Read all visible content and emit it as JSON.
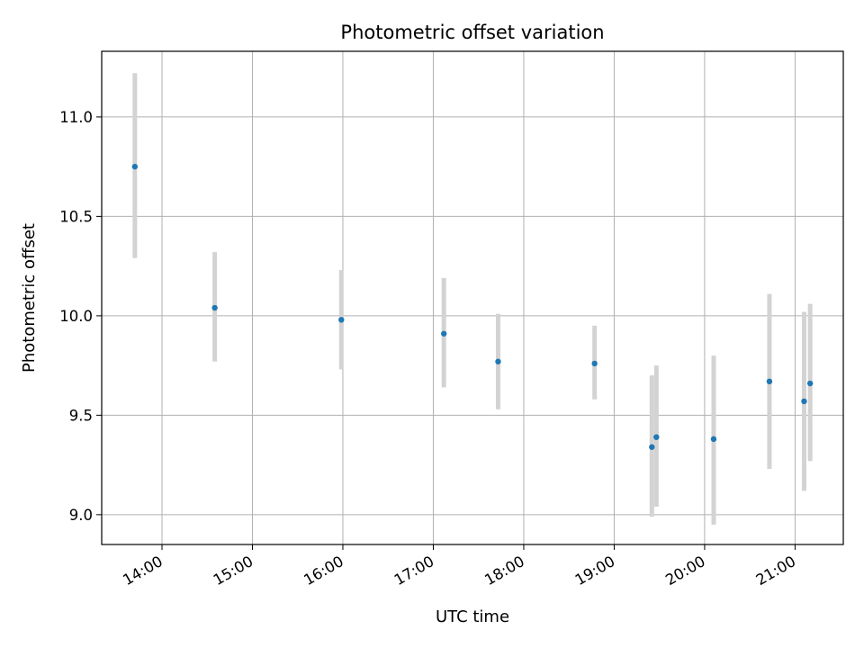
{
  "chart_data": {
    "type": "scatter",
    "title": "Photometric offset variation",
    "xlabel": "UTC time",
    "ylabel": "Photometric offset",
    "x_axis_type": "time",
    "xlim": [
      "13:20",
      "21:32"
    ],
    "ylim": [
      8.85,
      11.33
    ],
    "x_ticks": [
      "14:00",
      "15:00",
      "16:00",
      "17:00",
      "18:00",
      "19:00",
      "20:00",
      "21:00"
    ],
    "y_ticks": [
      "9.0",
      "9.5",
      "10.0",
      "10.5",
      "11.0"
    ],
    "grid": true,
    "legend": "none",
    "colors": {
      "marker": "#1f77b4",
      "errorbar": "#d3d3d3",
      "grid": "#b0b0b0"
    },
    "series": [
      {
        "points": [
          {
            "x": "13:42",
            "y": 10.75,
            "yerr_low": 10.29,
            "yerr_high": 11.22
          },
          {
            "x": "14:35",
            "y": 10.04,
            "yerr_low": 9.77,
            "yerr_high": 10.32
          },
          {
            "x": "15:59",
            "y": 9.98,
            "yerr_low": 9.73,
            "yerr_high": 10.23
          },
          {
            "x": "17:07",
            "y": 9.91,
            "yerr_low": 9.64,
            "yerr_high": 10.19
          },
          {
            "x": "17:43",
            "y": 9.77,
            "yerr_low": 9.53,
            "yerr_high": 10.01
          },
          {
            "x": "18:47",
            "y": 9.76,
            "yerr_low": 9.58,
            "yerr_high": 9.95
          },
          {
            "x": "19:25",
            "y": 9.34,
            "yerr_low": 8.99,
            "yerr_high": 9.7
          },
          {
            "x": "19:28",
            "y": 9.39,
            "yerr_low": 9.04,
            "yerr_high": 9.75
          },
          {
            "x": "20:06",
            "y": 9.38,
            "yerr_low": 8.95,
            "yerr_high": 9.8
          },
          {
            "x": "20:43",
            "y": 9.67,
            "yerr_low": 9.23,
            "yerr_high": 10.11
          },
          {
            "x": "21:06",
            "y": 9.57,
            "yerr_low": 9.12,
            "yerr_high": 10.02
          },
          {
            "x": "21:10",
            "y": 9.66,
            "yerr_low": 9.27,
            "yerr_high": 10.06
          }
        ]
      }
    ]
  }
}
